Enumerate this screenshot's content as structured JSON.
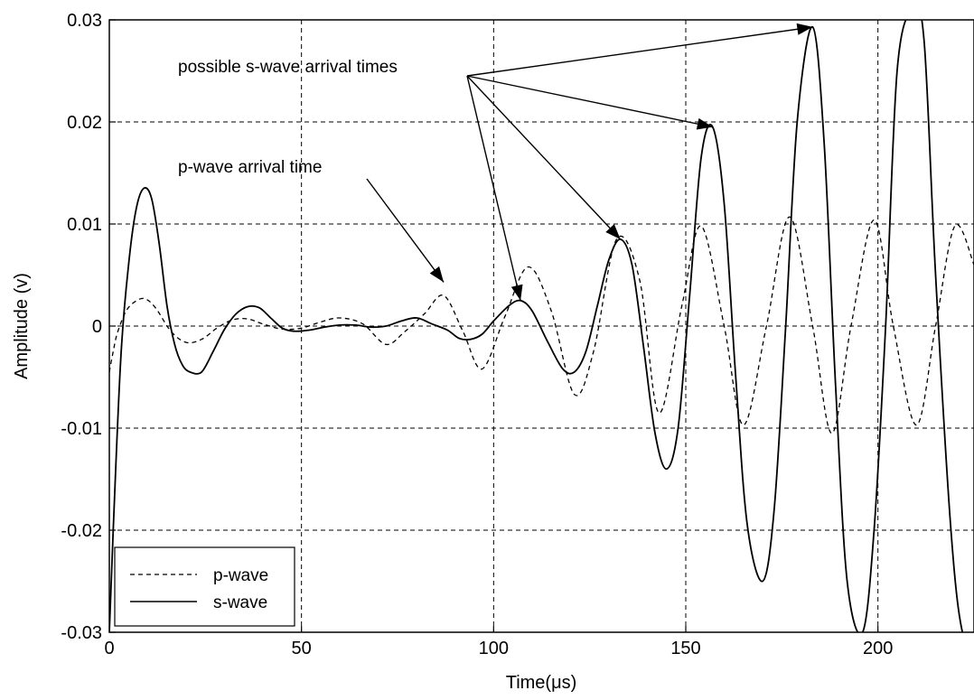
{
  "chart_data": {
    "type": "line",
    "title": "",
    "xlabel": "Time(μs)",
    "ylabel": "Amplitude (v)",
    "xlim": [
      0,
      225
    ],
    "ylim": [
      -0.03,
      0.03
    ],
    "grid": true,
    "legend_position": "bottom-left",
    "x_ticks": [
      0,
      50,
      100,
      150,
      200
    ],
    "x_tick_labels": [
      "0",
      "50",
      "100",
      "150",
      "200"
    ],
    "y_ticks": [
      0.03,
      0.02,
      0.01,
      0,
      -0.01,
      -0.02,
      -0.03
    ],
    "y_tick_labels": [
      "0.03",
      "0.02",
      "0.01",
      "0",
      "-0.01",
      "-0.02",
      "-0.03"
    ],
    "series": [
      {
        "name": "p-wave",
        "style": "dashed",
        "color": "#000000",
        "x": [
          0,
          1,
          2,
          4,
          6,
          9,
          12,
          16,
          20,
          24,
          28,
          32,
          36,
          40,
          45,
          50,
          55,
          60,
          66,
          72,
          77,
          82,
          87,
          92,
          97,
          103,
          109,
          115,
          121,
          126,
          132,
          138,
          143,
          149,
          154,
          160,
          165,
          171,
          177,
          183,
          188,
          193,
          199,
          204,
          210,
          215,
          220,
          225
        ],
        "y": [
          -0.0045,
          -0.0025,
          -0.0008,
          0.0012,
          0.0022,
          0.0027,
          0.0018,
          -0.0005,
          -0.0016,
          -0.0013,
          -0.0002,
          0.0006,
          0.0007,
          0.0002,
          -0.0003,
          -0.0002,
          0.0004,
          0.0008,
          0.0002,
          -0.0018,
          -0.0005,
          0.0012,
          0.003,
          -0.0005,
          -0.0042,
          0.001,
          0.0058,
          0.0015,
          -0.0067,
          -0.0025,
          0.0085,
          0.0045,
          -0.0085,
          0.002,
          0.0098,
          0.0,
          -0.0097,
          0.0,
          0.0107,
          0.0,
          -0.0105,
          0.0,
          0.0104,
          0.0,
          -0.0097,
          0.0,
          0.0098,
          0.006
        ]
      },
      {
        "name": "s-wave",
        "style": "solid",
        "color": "#000000",
        "x": [
          0,
          1,
          3,
          5,
          7,
          9,
          11,
          13,
          15,
          17,
          19,
          21,
          24,
          27,
          30,
          33,
          36,
          39,
          42,
          45,
          48,
          52,
          56,
          60,
          64,
          68,
          72,
          76,
          80,
          84,
          88,
          91,
          94,
          97,
          100,
          104,
          107,
          110,
          114,
          118,
          121,
          124,
          127,
          130,
          133,
          136,
          139,
          142,
          145,
          148,
          151,
          154,
          157,
          160,
          163,
          166,
          170,
          173,
          176,
          179,
          183,
          186,
          189,
          192,
          196,
          199,
          202,
          205,
          209,
          212,
          215,
          219,
          222,
          225
        ],
        "y": [
          -0.03,
          -0.02,
          -0.003,
          0.006,
          0.0115,
          0.0135,
          0.0125,
          0.008,
          0.002,
          -0.0018,
          -0.0038,
          -0.0045,
          -0.0045,
          -0.0025,
          -0.0003,
          0.0012,
          0.0019,
          0.0018,
          0.0008,
          -0.0002,
          -0.0005,
          -0.0004,
          -0.0001,
          0.0001,
          0.0001,
          -0.0001,
          0.0,
          0.0005,
          0.0008,
          0.0002,
          -0.0004,
          -0.0012,
          -0.0013,
          -0.0008,
          0.0005,
          0.002,
          0.0025,
          0.0015,
          -0.0015,
          -0.0042,
          -0.0045,
          -0.0025,
          0.002,
          0.0065,
          0.0085,
          0.006,
          -0.002,
          -0.0105,
          -0.014,
          -0.01,
          0.003,
          0.0165,
          0.0195,
          0.012,
          -0.005,
          -0.0195,
          -0.025,
          -0.018,
          0.0,
          0.02,
          0.0293,
          0.018,
          -0.006,
          -0.025,
          -0.03,
          -0.02,
          0.0,
          0.025,
          0.031,
          0.028,
          0.005,
          -0.02,
          -0.03,
          -0.03
        ]
      }
    ],
    "legend": [
      {
        "label": "p-wave",
        "style": "dashed"
      },
      {
        "label": "s-wave",
        "style": "solid"
      }
    ],
    "annotations": [
      {
        "text": "possible s-wave arrival times",
        "arrows_to": [
          [
            183,
            0.0293
          ],
          [
            157,
            0.0195
          ],
          [
            133,
            0.0085
          ],
          [
            107,
            0.0025
          ]
        ]
      },
      {
        "text": "p-wave arrival time",
        "arrows_to": [
          [
            87,
            0.0043
          ]
        ]
      }
    ]
  }
}
